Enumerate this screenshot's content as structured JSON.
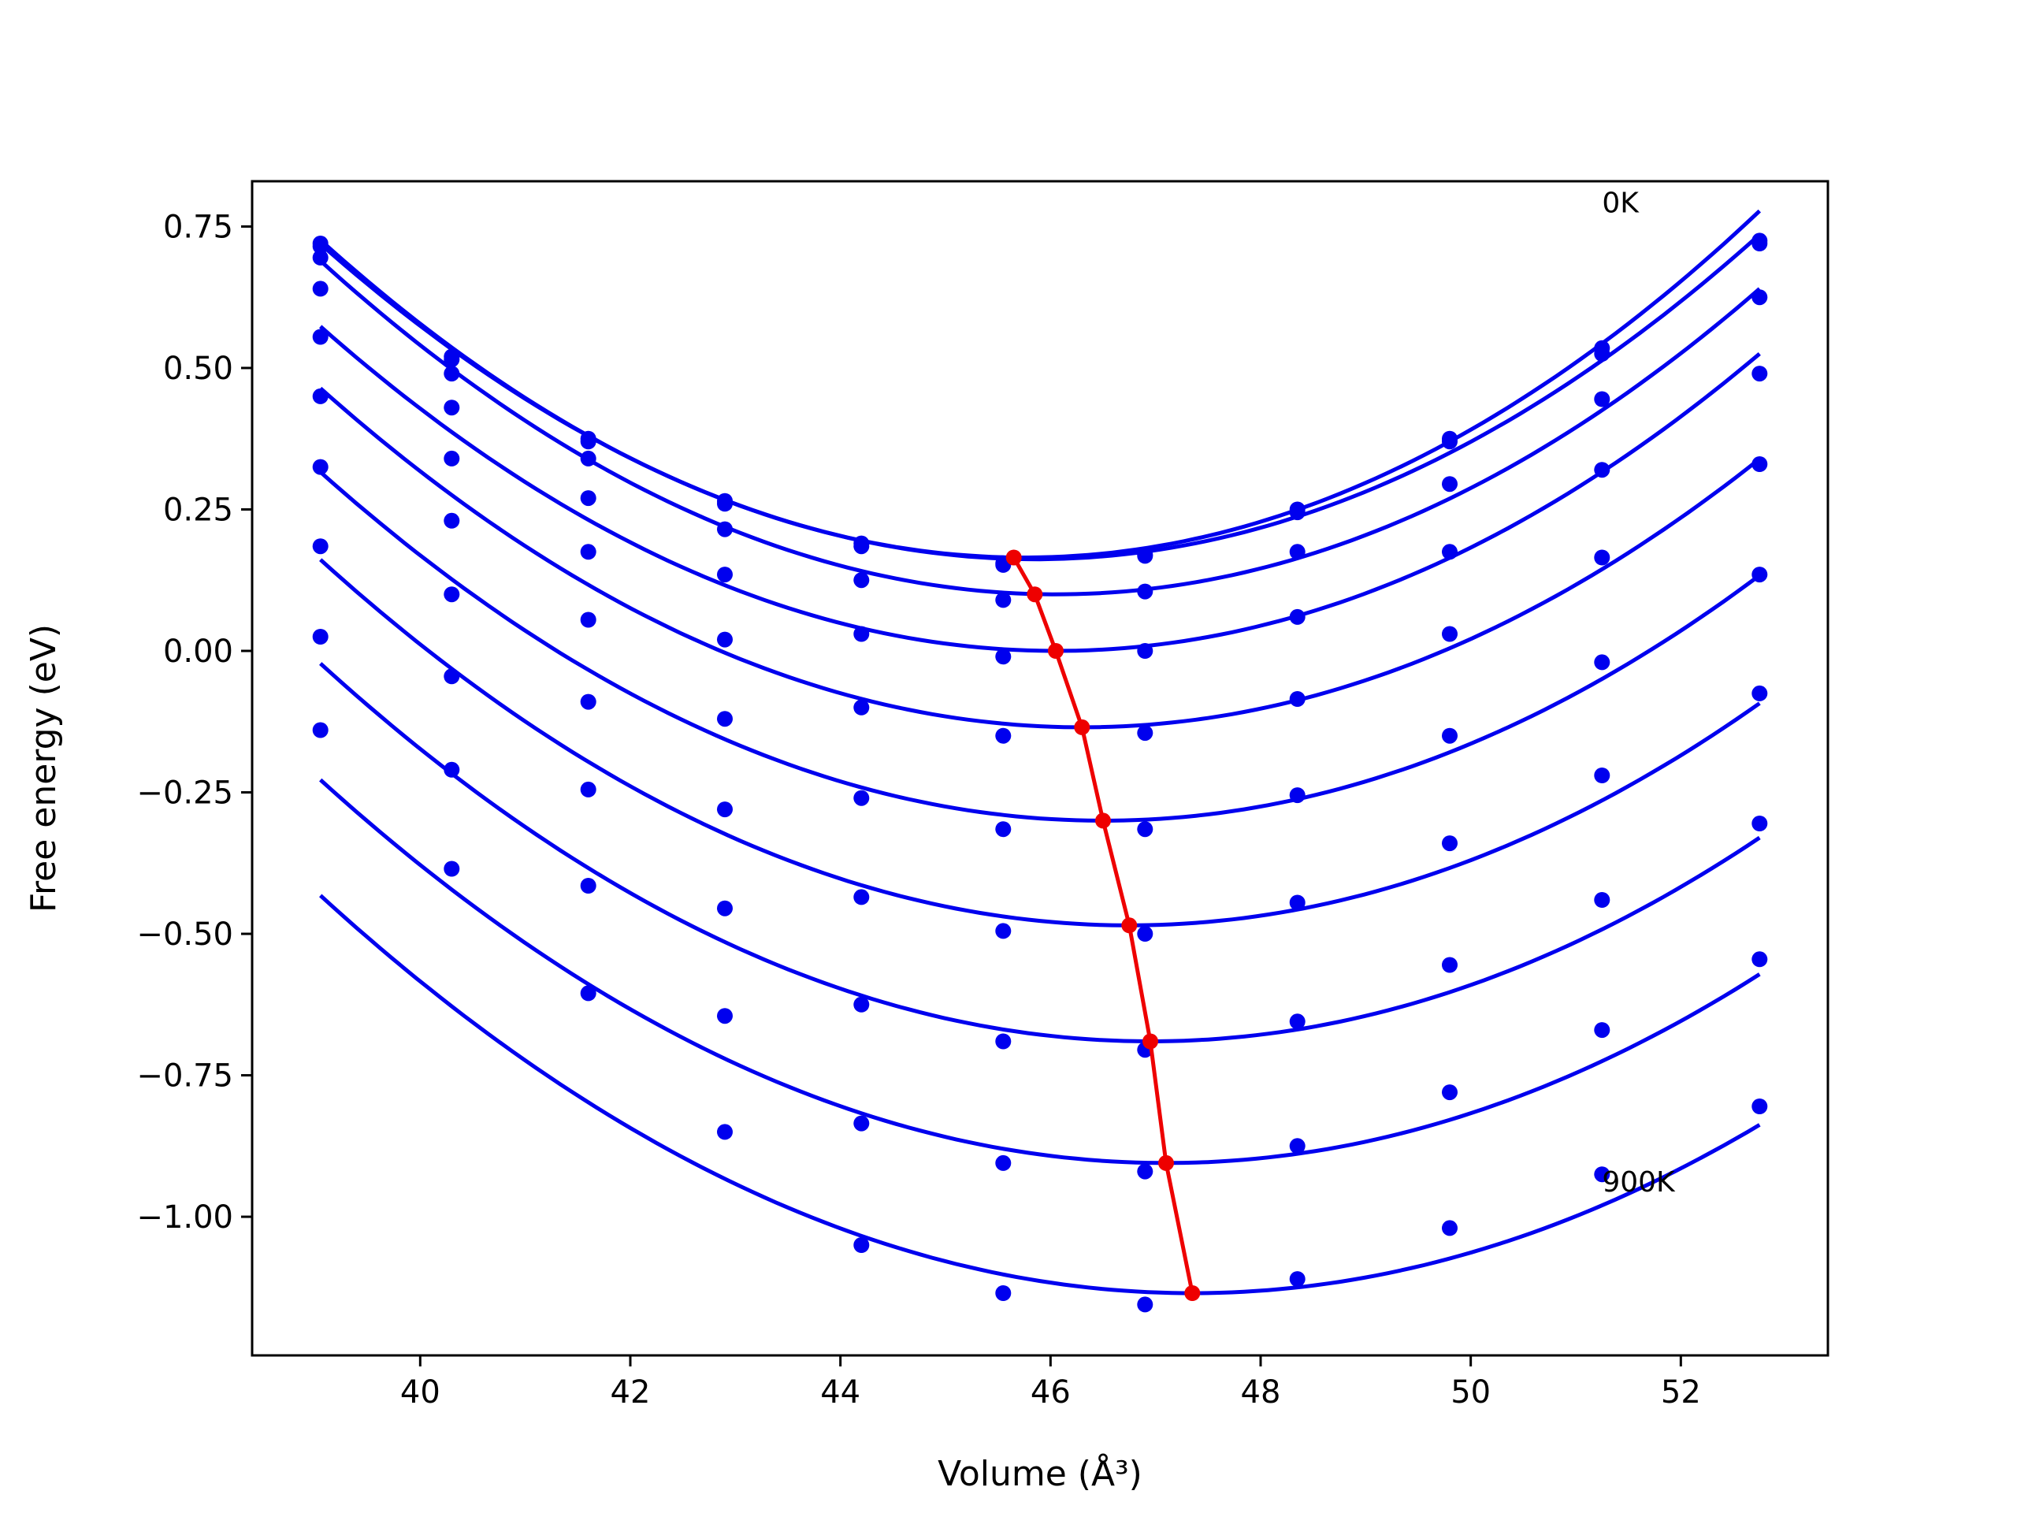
{
  "chart_data": {
    "type": "scatter",
    "title": "",
    "xlabel": "Volume (Å³)",
    "ylabel": "Free energy (eV)",
    "xlim": [
      38.4,
      53.4
    ],
    "ylim": [
      -1.245,
      0.83
    ],
    "grid": false,
    "legend": "none",
    "xticks": [
      40,
      42,
      44,
      46,
      48,
      50,
      52
    ],
    "xtick_labels": [
      "40",
      "42",
      "44",
      "46",
      "48",
      "50",
      "52"
    ],
    "yticks": [
      0.75,
      0.5,
      0.25,
      0.0,
      -0.25,
      -0.5,
      -0.75,
      -1.0
    ],
    "ytick_labels": [
      "0.75",
      "0.50",
      "0.25",
      "0.00",
      "−0.25",
      "−0.50",
      "−0.75",
      "−1.00"
    ],
    "point_color": "#0000ee",
    "curve_color": "#0000ee",
    "min_line_color": "#ee0000",
    "x": [
      39.05,
      40.3,
      41.6,
      42.9,
      44.2,
      45.55,
      46.9,
      48.35,
      49.8,
      51.25,
      52.75
    ],
    "series": [
      {
        "values": [
          0.72,
          0.52,
          0.375,
          0.265,
          0.19,
          0.155,
          0.17,
          0.25,
          0.375,
          0.535,
          0.725
        ]
      },
      {
        "values": [
          0.715,
          0.515,
          0.37,
          0.26,
          0.185,
          0.152,
          0.168,
          0.245,
          0.37,
          0.525,
          0.72
        ]
      },
      {
        "values": [
          0.695,
          0.49,
          0.34,
          0.215,
          0.125,
          0.09,
          0.105,
          0.175,
          0.295,
          0.445,
          0.625
        ]
      },
      {
        "values": [
          0.64,
          0.43,
          0.27,
          0.135,
          0.03,
          -0.01,
          0.0,
          0.06,
          0.175,
          0.32,
          0.49
        ]
      },
      {
        "values": [
          0.555,
          0.34,
          0.175,
          0.02,
          -0.1,
          -0.15,
          -0.145,
          -0.085,
          0.03,
          0.165,
          0.33
        ]
      },
      {
        "values": [
          0.45,
          0.23,
          0.055,
          -0.12,
          -0.26,
          -0.315,
          -0.315,
          -0.255,
          -0.15,
          -0.02,
          0.135
        ]
      },
      {
        "values": [
          0.325,
          0.1,
          -0.09,
          -0.28,
          -0.435,
          -0.495,
          -0.5,
          -0.445,
          -0.34,
          -0.22,
          -0.075
        ]
      },
      {
        "values": [
          0.185,
          -0.045,
          -0.245,
          -0.455,
          -0.625,
          -0.69,
          -0.705,
          -0.655,
          -0.555,
          -0.44,
          -0.305
        ]
      },
      {
        "values": [
          0.025,
          -0.21,
          -0.415,
          -0.645,
          -0.835,
          -0.905,
          -0.92,
          -0.875,
          -0.78,
          -0.67,
          -0.545
        ]
      },
      {
        "values": [
          -0.14,
          -0.385,
          -0.605,
          -0.85,
          -1.05,
          -1.135,
          -1.155,
          -1.11,
          -1.02,
          -0.925,
          -0.805
        ]
      }
    ],
    "fit_curves": [
      {
        "v0": 45.75,
        "e0": 0.165,
        "a": 0.0125
      },
      {
        "v0": 45.85,
        "e0": 0.162,
        "a": 0.01205
      },
      {
        "v0": 46.05,
        "e0": 0.1,
        "a": 0.01203
      },
      {
        "v0": 46.05,
        "e0": 0.0,
        "a": 0.0117
      },
      {
        "v0": 46.3,
        "e0": -0.135,
        "a": 0.0114
      },
      {
        "v0": 46.5,
        "e0": -0.3,
        "a": 0.0111
      },
      {
        "v0": 46.75,
        "e0": -0.485,
        "a": 0.0109
      },
      {
        "v0": 46.95,
        "e0": -0.69,
        "a": 0.0107
      },
      {
        "v0": 47.1,
        "e0": -0.905,
        "a": 0.01045
      },
      {
        "v0": 47.35,
        "e0": -1.135,
        "a": 0.0102
      }
    ],
    "min_line": {
      "x": [
        45.65,
        45.85,
        46.05,
        46.3,
        46.5,
        46.75,
        46.95,
        47.1,
        47.35
      ],
      "y": [
        0.165,
        0.1,
        0.0,
        -0.135,
        -0.3,
        -0.485,
        -0.69,
        -0.905,
        -1.135
      ]
    },
    "fit_xrange": [
      39.05,
      52.75
    ],
    "annotations": [
      {
        "text": "0K",
        "x": 51.25,
        "y": 0.775
      },
      {
        "text": "900K",
        "x": 51.25,
        "y": -0.955
      }
    ]
  }
}
